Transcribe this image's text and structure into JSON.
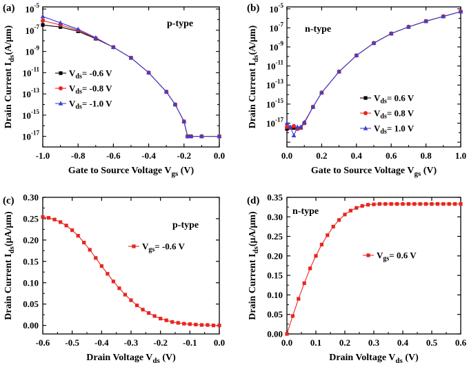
{
  "chart_data": [
    {
      "type": "line",
      "panel_label": "(a)",
      "annotation": "p-type",
      "xlabel": "Gate to Source Voltage V",
      "xlabel_sub": "gs",
      "xlabel_suffix": " (V)",
      "ylabel": "Drain Current I",
      "ylabel_sub": "ds",
      "ylabel_suffix": "(A/μm)",
      "yscale": "log",
      "xlim": [
        -1.0,
        0.0
      ],
      "ylim_exp": [
        -18,
        -4.8
      ],
      "xticks": [
        "-1.0",
        "-0.8",
        "-0.6",
        "-0.4",
        "-0.2",
        "0.0"
      ],
      "yticks_exp": [
        "-5",
        "-7",
        "-9",
        "-11",
        "-13",
        "-15",
        "-17"
      ],
      "legend_position": "middle-left",
      "series": [
        {
          "name_prefix": "V",
          "name_sub": "ds",
          "name_suffix": "= -0.6 V",
          "marker": "square",
          "color": "#000000",
          "x": [
            -1.0,
            -0.9,
            -0.8,
            -0.7,
            -0.6,
            -0.5,
            -0.4,
            -0.3,
            -0.25,
            -0.2,
            -0.18,
            -0.16,
            -0.1,
            0.0
          ],
          "log_y": [
            -6.5,
            -6.7,
            -7.1,
            -7.8,
            -8.6,
            -9.6,
            -11.0,
            -12.8,
            -14.0,
            -15.6,
            -17.0,
            -17.0,
            -17.0,
            -17.0
          ]
        },
        {
          "name_prefix": "V",
          "name_sub": "ds",
          "name_suffix": "= -0.8 V",
          "marker": "circle",
          "color": "#e8251e",
          "x": [
            -1.0,
            -0.9,
            -0.8,
            -0.7,
            -0.6,
            -0.5,
            -0.4,
            -0.3,
            -0.25,
            -0.2,
            -0.18,
            -0.16,
            -0.1,
            0.0
          ],
          "log_y": [
            -6.1,
            -6.5,
            -7.0,
            -7.75,
            -8.6,
            -9.6,
            -11.0,
            -12.8,
            -14.0,
            -15.6,
            -17.0,
            -17.0,
            -17.0,
            -17.0
          ]
        },
        {
          "name_prefix": "V",
          "name_sub": "ds",
          "name_suffix": "= -1.0 V",
          "marker": "triangle",
          "color": "#3f3fcf",
          "x": [
            -1.0,
            -0.9,
            -0.8,
            -0.7,
            -0.6,
            -0.5,
            -0.4,
            -0.3,
            -0.25,
            -0.2,
            -0.18,
            -0.16,
            -0.1,
            0.0
          ],
          "log_y": [
            -5.7,
            -6.3,
            -6.9,
            -7.7,
            -8.6,
            -9.6,
            -11.0,
            -12.8,
            -14.0,
            -15.6,
            -17.0,
            -17.0,
            -17.0,
            -17.0
          ]
        }
      ]
    },
    {
      "type": "line",
      "panel_label": "(b)",
      "annotation": "n-type",
      "xlabel": "Gate to Source Voltage V",
      "xlabel_sub": "gs",
      "xlabel_suffix": " (V)",
      "ylabel": "Drain Current I",
      "ylabel_sub": "ds",
      "ylabel_suffix": "(A/μm)",
      "yscale": "log",
      "xlim": [
        0.0,
        1.0
      ],
      "ylim_exp": [
        -19.5,
        -4.8
      ],
      "xticks": [
        "0.0",
        "0.2",
        "0.4",
        "0.6",
        "0.8",
        "1.0"
      ],
      "yticks_exp": [
        "-5",
        "-7",
        "-9",
        "-11",
        "-13",
        "-15",
        "-17"
      ],
      "legend_position": "middle-right",
      "series": [
        {
          "name_prefix": "V",
          "name_sub": "ds",
          "name_suffix": "= 0.6 V",
          "marker": "square",
          "color": "#000000",
          "x": [
            0.0,
            0.02,
            0.04,
            0.06,
            0.08,
            0.1,
            0.15,
            0.2,
            0.3,
            0.4,
            0.5,
            0.6,
            0.7,
            0.8,
            0.9,
            1.0
          ],
          "log_y": [
            -17.6,
            -17.5,
            -17.5,
            -17.6,
            -17.5,
            -17.0,
            -15.3,
            -13.8,
            -11.6,
            -9.9,
            -8.6,
            -7.6,
            -6.9,
            -6.3,
            -5.8,
            -5.3
          ]
        },
        {
          "name_prefix": "V",
          "name_sub": "ds",
          "name_suffix": "= 0.8 V",
          "marker": "circle",
          "color": "#e8251e",
          "x": [
            0.0,
            0.02,
            0.04,
            0.06,
            0.08,
            0.1,
            0.15,
            0.2,
            0.3,
            0.4,
            0.5,
            0.6,
            0.7,
            0.8,
            0.9,
            1.0
          ],
          "log_y": [
            -17.4,
            -17.5,
            -17.3,
            -17.6,
            -17.5,
            -17.0,
            -15.3,
            -13.8,
            -11.6,
            -9.9,
            -8.6,
            -7.6,
            -6.9,
            -6.3,
            -5.8,
            -5.3
          ]
        },
        {
          "name_prefix": "V",
          "name_sub": "ds",
          "name_suffix": "= 1.0 V",
          "marker": "triangle",
          "color": "#3f3fcf",
          "x": [
            0.0,
            0.02,
            0.04,
            0.06,
            0.08,
            0.1,
            0.15,
            0.2,
            0.3,
            0.4,
            0.5,
            0.6,
            0.7,
            0.8,
            0.9,
            1.0
          ],
          "log_y": [
            -17.0,
            -17.4,
            -18.3,
            -17.4,
            -17.4,
            -16.9,
            -15.3,
            -13.8,
            -11.6,
            -9.9,
            -8.6,
            -7.6,
            -6.9,
            -6.3,
            -5.8,
            -5.3
          ]
        }
      ]
    },
    {
      "type": "line",
      "panel_label": "(c)",
      "annotation": "p-type",
      "xlabel": "Drain Voltage V",
      "xlabel_sub": "ds",
      "xlabel_suffix": " (V)",
      "ylabel": "Drain Current I",
      "ylabel_sub": "ds",
      "ylabel_suffix": "(μA/μm)",
      "yscale": "linear",
      "xlim": [
        -0.6,
        0.0
      ],
      "ylim": [
        -0.02,
        0.3
      ],
      "xticks": [
        "-0.6",
        "-0.5",
        "-0.4",
        "-0.3",
        "-0.2",
        "-0.1",
        "0.0"
      ],
      "yticks": [
        "0.00",
        "0.05",
        "0.10",
        "0.15",
        "0.20",
        "0.25",
        "0.30"
      ],
      "legend_position": "middle-right",
      "series": [
        {
          "name_prefix": "V",
          "name_sub": "gs",
          "name_suffix": "= -0.6 V",
          "marker": "square",
          "color": "#e8251e",
          "x": [
            -0.6,
            -0.58,
            -0.56,
            -0.54,
            -0.52,
            -0.5,
            -0.48,
            -0.46,
            -0.44,
            -0.42,
            -0.4,
            -0.38,
            -0.36,
            -0.34,
            -0.32,
            -0.3,
            -0.28,
            -0.26,
            -0.24,
            -0.22,
            -0.2,
            -0.18,
            -0.16,
            -0.14,
            -0.12,
            -0.1,
            -0.08,
            -0.06,
            -0.04,
            -0.02,
            0.0
          ],
          "values": [
            0.254,
            0.252,
            0.248,
            0.242,
            0.234,
            0.223,
            0.21,
            0.194,
            0.177,
            0.158,
            0.139,
            0.121,
            0.103,
            0.087,
            0.072,
            0.059,
            0.047,
            0.037,
            0.029,
            0.022,
            0.016,
            0.012,
            0.008,
            0.006,
            0.004,
            0.003,
            0.002,
            0.001,
            0.001,
            0.0,
            0.0
          ]
        }
      ]
    },
    {
      "type": "line",
      "panel_label": "(d)",
      "annotation": "n-type",
      "xlabel": "Drain Voltage V",
      "xlabel_sub": "ds",
      "xlabel_suffix": " (V)",
      "ylabel": "Drain Current I",
      "ylabel_sub": "ds",
      "ylabel_suffix": "(μA/μm)",
      "yscale": "linear",
      "xlim": [
        0.0,
        0.6
      ],
      "ylim": [
        0.0,
        0.35
      ],
      "xticks": [
        "0.0",
        "0.1",
        "0.2",
        "0.3",
        "0.4",
        "0.5",
        "0.6"
      ],
      "yticks": [
        "0.00",
        "0.05",
        "0.10",
        "0.15",
        "0.20",
        "0.25",
        "0.30",
        "0.35"
      ],
      "legend_position": "middle-right",
      "series": [
        {
          "name_prefix": "V",
          "name_sub": "gs",
          "name_suffix": "= 0.6 V",
          "marker": "square",
          "color": "#e8251e",
          "x": [
            0.0,
            0.02,
            0.04,
            0.06,
            0.08,
            0.1,
            0.12,
            0.14,
            0.16,
            0.18,
            0.2,
            0.22,
            0.24,
            0.26,
            0.28,
            0.3,
            0.32,
            0.34,
            0.36,
            0.38,
            0.4,
            0.42,
            0.44,
            0.46,
            0.48,
            0.5,
            0.52,
            0.54,
            0.56,
            0.58,
            0.6
          ],
          "values": [
            0.0,
            0.046,
            0.09,
            0.13,
            0.168,
            0.2,
            0.229,
            0.253,
            0.275,
            0.292,
            0.306,
            0.316,
            0.323,
            0.328,
            0.331,
            0.332,
            0.333,
            0.333,
            0.333,
            0.333,
            0.333,
            0.333,
            0.333,
            0.333,
            0.333,
            0.333,
            0.333,
            0.333,
            0.333,
            0.333,
            0.333
          ]
        }
      ]
    }
  ]
}
